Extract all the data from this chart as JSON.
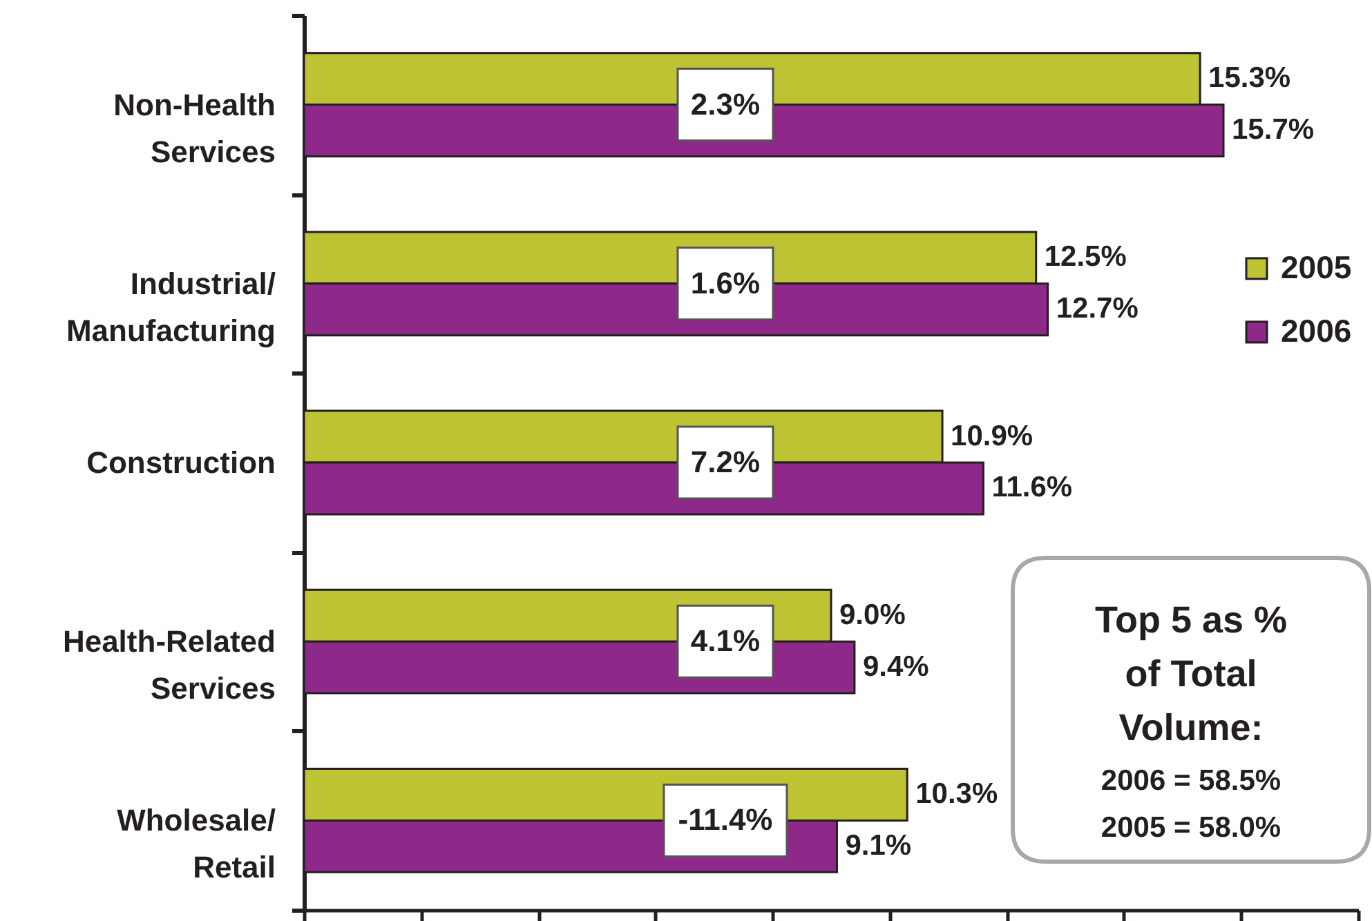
{
  "chart_data": {
    "type": "bar",
    "orientation": "horizontal",
    "categories": [
      "Non-Health Services",
      "Industrial/ Manufacturing",
      "Construction",
      "Health-Related Services",
      "Wholesale/ Retail"
    ],
    "series": [
      {
        "name": "2005",
        "color": "#bdc332",
        "values": [
          15.3,
          12.5,
          10.9,
          9.0,
          10.3
        ],
        "value_labels": [
          "15.3%",
          "12.5%",
          "10.9%",
          "9.0%",
          "10.3%"
        ]
      },
      {
        "name": "2006",
        "color": "#8e298a",
        "values": [
          15.7,
          12.7,
          11.6,
          9.4,
          9.1
        ],
        "value_labels": [
          "15.7%",
          "12.7%",
          "11.6%",
          "9.4%",
          "9.1%"
        ]
      }
    ],
    "xlim": [
      0,
      18
    ],
    "xticks": [
      {
        "value": 0,
        "label": null
      },
      {
        "value": 2,
        "label": null
      },
      {
        "value": 4,
        "label": null
      },
      {
        "value": 6,
        "label": null
      },
      {
        "value": 8,
        "label": null
      },
      {
        "value": 10,
        "label": null
      },
      {
        "value": 12,
        "label": null
      },
      {
        "value": 14,
        "label": null
      },
      {
        "value": 16,
        "label": null
      },
      {
        "value": 18,
        "label": null
      }
    ],
    "tick_labels": "y",
    "legend": "right",
    "annotations": [
      "2.3%",
      "1.6%",
      "7.2%",
      "4.1%",
      "-11.4%",
      "Top 5 as % of Total Volume:",
      "2006 = 58.5%",
      "2005 = 58.0%"
    ]
  }
}
